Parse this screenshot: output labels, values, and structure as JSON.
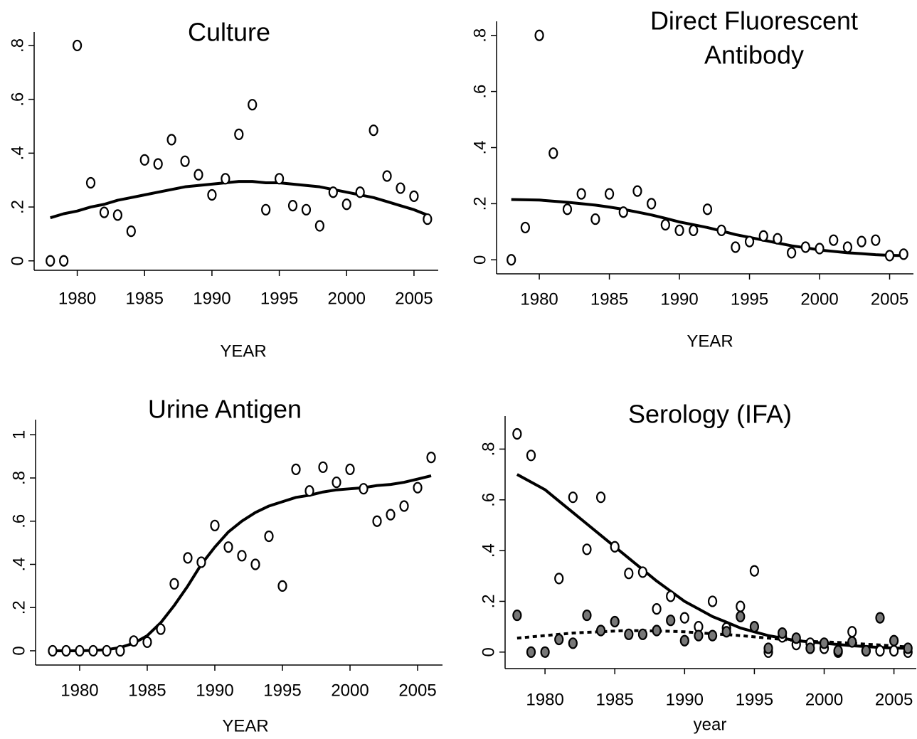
{
  "chart_data": [
    {
      "type": "scatter",
      "title": [
        "Culture"
      ],
      "x_label": "YEAR",
      "x": [
        1978,
        1979,
        1980,
        1981,
        1982,
        1983,
        1984,
        1985,
        1986,
        1987,
        1988,
        1989,
        1990,
        1991,
        1992,
        1993,
        1994,
        1995,
        1996,
        1997,
        1998,
        1999,
        2000,
        2001,
        2002,
        2003,
        2004,
        2005,
        2006
      ],
      "xlim": [
        1976.8,
        2006.8
      ],
      "xticks": [
        1980,
        1985,
        1990,
        1995,
        2000,
        2005
      ],
      "ylim": [
        -0.035,
        0.85
      ],
      "yticks": [
        0,
        {
          "value": 0.2,
          "label": ".2"
        },
        {
          "value": 0.4,
          "label": ".4"
        },
        {
          "value": 0.6,
          "label": ".6"
        },
        {
          "value": 0.8,
          "label": ".8"
        }
      ],
      "series": [
        {
          "type": "markers",
          "color": "#ffffff",
          "values": [
            0,
            0,
            0.8,
            0.29,
            0.18,
            0.17,
            0.11,
            0.375,
            0.36,
            0.45,
            0.37,
            0.32,
            0.245,
            0.305,
            0.47,
            0.58,
            0.19,
            0.305,
            0.205,
            0.19,
            0.13,
            0.255,
            0.21,
            0.255,
            0.485,
            0.315,
            0.27,
            0.24,
            0.155
          ]
        },
        {
          "type": "line",
          "color": "#000000",
          "dashed": false,
          "values": [
            0.16,
            0.175,
            0.185,
            0.2,
            0.21,
            0.225,
            0.235,
            0.245,
            0.255,
            0.265,
            0.275,
            0.28,
            0.285,
            0.29,
            0.295,
            0.295,
            0.29,
            0.29,
            0.285,
            0.28,
            0.275,
            0.265,
            0.255,
            0.245,
            0.235,
            0.22,
            0.205,
            0.19,
            0.17
          ]
        }
      ]
    },
    {
      "type": "scatter",
      "title": [
        "Direct Fluorescent",
        "Antibody"
      ],
      "x_label": "YEAR",
      "x": [
        1978,
        1979,
        1980,
        1981,
        1982,
        1983,
        1984,
        1985,
        1986,
        1987,
        1988,
        1989,
        1990,
        1991,
        1992,
        1993,
        1994,
        1995,
        1996,
        1997,
        1998,
        1999,
        2000,
        2001,
        2002,
        2003,
        2004,
        2005,
        2006
      ],
      "xlim": [
        1976.95,
        2006.7
      ],
      "xticks": [
        1980,
        1985,
        1990,
        1995,
        2000,
        2005
      ],
      "ylim": [
        -0.05,
        0.85
      ],
      "yticks": [
        0,
        {
          "value": 0.2,
          "label": ".2"
        },
        {
          "value": 0.4,
          "label": ".4"
        },
        {
          "value": 0.6,
          "label": ".6"
        },
        {
          "value": 0.8,
          "label": ".8"
        }
      ],
      "series": [
        {
          "type": "markers",
          "color": "#ffffff",
          "values": [
            0,
            0.115,
            0.8,
            0.38,
            0.18,
            0.235,
            0.145,
            0.235,
            0.17,
            0.245,
            0.2,
            0.125,
            0.105,
            0.105,
            0.18,
            0.105,
            0.045,
            0.065,
            0.085,
            0.075,
            0.025,
            0.045,
            0.04,
            0.07,
            0.045,
            0.065,
            0.07,
            0.015,
            0.02
          ]
        },
        {
          "type": "line",
          "color": "#000000",
          "dashed": false,
          "values": [
            0.215,
            0.214,
            0.213,
            0.209,
            0.205,
            0.2,
            0.195,
            0.188,
            0.18,
            0.17,
            0.16,
            0.148,
            0.135,
            0.125,
            0.115,
            0.103,
            0.09,
            0.08,
            0.07,
            0.06,
            0.05,
            0.043,
            0.035,
            0.03,
            0.025,
            0.022,
            0.018,
            0.016,
            0.015
          ]
        }
      ]
    },
    {
      "type": "scatter",
      "title": [
        "Urine Antigen"
      ],
      "x_label": "YEAR",
      "x": [
        1978,
        1979,
        1980,
        1981,
        1982,
        1983,
        1984,
        1985,
        1986,
        1987,
        1988,
        1989,
        1990,
        1991,
        1992,
        1993,
        1994,
        1995,
        1996,
        1997,
        1998,
        1999,
        2000,
        2001,
        2002,
        2003,
        2004,
        2005,
        2006
      ],
      "xlim": [
        1976.74,
        2006.84
      ],
      "xticks": [
        1980,
        1985,
        1990,
        1995,
        2000,
        2005
      ],
      "ylim": [
        -0.066,
        1.07
      ],
      "yticks": [
        0,
        {
          "value": 0.2,
          "label": ".2"
        },
        {
          "value": 0.4,
          "label": ".4"
        },
        {
          "value": 0.6,
          "label": ".6"
        },
        {
          "value": 0.8,
          "label": ".8"
        },
        1
      ],
      "series": [
        {
          "type": "markers",
          "color": "#ffffff",
          "values": [
            0,
            0,
            0,
            0,
            0,
            0,
            0.045,
            0.04,
            0.1,
            0.31,
            0.43,
            0.41,
            0.58,
            0.48,
            0.44,
            0.4,
            0.53,
            0.3,
            0.84,
            0.74,
            0.85,
            0.78,
            0.84,
            0.75,
            0.6,
            0.63,
            0.67,
            0.755,
            0.895
          ]
        },
        {
          "type": "line",
          "color": "#000000",
          "dashed": false,
          "values": [
            0,
            0,
            0,
            0.002,
            0.005,
            0.015,
            0.035,
            0.07,
            0.13,
            0.21,
            0.3,
            0.4,
            0.48,
            0.55,
            0.6,
            0.64,
            0.67,
            0.69,
            0.71,
            0.72,
            0.735,
            0.745,
            0.75,
            0.755,
            0.765,
            0.77,
            0.78,
            0.795,
            0.81
          ]
        }
      ]
    },
    {
      "type": "scatter",
      "title": [
        "Serology (IFA)"
      ],
      "x_label": "year",
      "x": [
        1978,
        1979,
        1980,
        1981,
        1982,
        1983,
        1984,
        1985,
        1986,
        1987,
        1988,
        1989,
        1990,
        1991,
        1992,
        1993,
        1994,
        1995,
        1996,
        1997,
        1998,
        1999,
        2000,
        2001,
        2002,
        2003,
        2004,
        2005,
        2006
      ],
      "xlim": [
        1977.14,
        2006.6
      ],
      "xticks": [
        1980,
        1985,
        1990,
        1995,
        2000,
        2005
      ],
      "ylim": [
        -0.065,
        0.93
      ],
      "yticks": [
        0,
        {
          "value": 0.2,
          "label": ".2"
        },
        {
          "value": 0.4,
          "label": ".4"
        },
        {
          "value": 0.6,
          "label": ".6"
        },
        {
          "value": 0.8,
          "label": ".8"
        }
      ],
      "series": [
        {
          "type": "markers",
          "color": "#ffffff",
          "values": [
            0.86,
            0.775,
            null,
            0.29,
            0.61,
            0.405,
            0.61,
            0.415,
            0.31,
            0.315,
            0.17,
            0.22,
            0.135,
            0.1,
            0.2,
            0.095,
            0.18,
            0.32,
            0,
            0.06,
            0.03,
            0.035,
            0.015,
            0,
            0.08,
            0.005,
            0.005,
            0.005,
            0
          ]
        },
        {
          "type": "markers",
          "color": "#777777",
          "values": [
            0.145,
            0,
            0,
            0.05,
            0.035,
            0.145,
            0.085,
            0.12,
            0.07,
            0.07,
            0.085,
            0.125,
            0.045,
            0.065,
            0.065,
            0.08,
            0.14,
            0.1,
            0.015,
            0.075,
            0.055,
            0.015,
            0.035,
            0.005,
            0.04,
            0.005,
            0.135,
            0.045,
            0.015
          ]
        },
        {
          "type": "line",
          "color": "#000000",
          "dashed": false,
          "values": [
            0.7,
            0.67,
            0.64,
            0.595,
            0.55,
            0.505,
            0.46,
            0.415,
            0.37,
            0.325,
            0.28,
            0.24,
            0.2,
            0.17,
            0.14,
            0.118,
            0.095,
            0.08,
            0.065,
            0.055,
            0.045,
            0.04,
            0.035,
            0.03,
            0.025,
            0.022,
            0.018,
            0.016,
            0.015
          ]
        },
        {
          "type": "line",
          "color": "#000000",
          "dashed": true,
          "values": [
            0.055,
            0.06,
            0.065,
            0.07,
            0.075,
            0.078,
            0.08,
            0.083,
            0.085,
            0.084,
            0.083,
            0.082,
            0.08,
            0.076,
            0.072,
            0.069,
            0.065,
            0.06,
            0.055,
            0.05,
            0.045,
            0.042,
            0.04,
            0.038,
            0.035,
            0.031,
            0.028,
            0.024,
            0.02
          ]
        }
      ]
    }
  ]
}
